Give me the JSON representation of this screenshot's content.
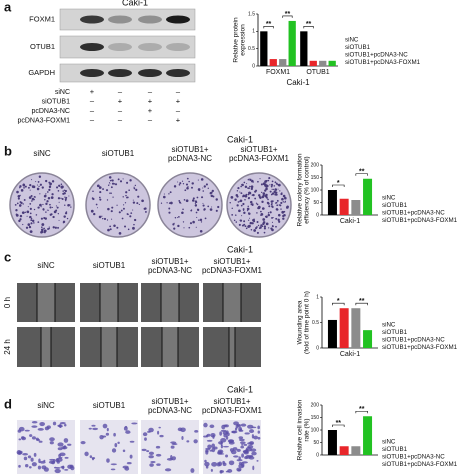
{
  "figure": {
    "panel_labels": [
      "a",
      "b",
      "c",
      "d"
    ],
    "blot": {
      "title": "Caki-1",
      "proteins": [
        "FOXM1",
        "OTUB1",
        "GAPDH"
      ],
      "treatments": [
        {
          "name": "siNC",
          "signs": [
            "+",
            "–",
            "–",
            "–"
          ]
        },
        {
          "name": "siOTUB1",
          "signs": [
            "–",
            "+",
            "+",
            "+"
          ]
        },
        {
          "name": "pcDNA3-NC",
          "signs": [
            "–",
            "–",
            "+",
            "–"
          ]
        },
        {
          "name": "pcDNA3-FOXM1",
          "signs": [
            "–",
            "–",
            "–",
            "+"
          ]
        }
      ]
    },
    "image_panels": [
      {
        "title": "Caki-1",
        "columns": [
          [
            "siNC"
          ],
          [
            "siOTUB1"
          ],
          [
            "siOTUB1+",
            "pcDNA3-NC"
          ],
          [
            "siOTUB1+",
            "pcDNA3-FOXM1"
          ]
        ]
      },
      {
        "title": "Caki-1",
        "columns": [
          [
            "siNC"
          ],
          [
            "siOTUB1"
          ],
          [
            "siOTUB1+",
            "pcDNA3-NC"
          ],
          [
            "siOTUB1+",
            "pcDNA3-FOXM1"
          ]
        ]
      },
      {
        "title": "Caki-1",
        "columns": [
          [
            "siNC"
          ],
          [
            "siOTUB1"
          ],
          [
            "siOTUB1+",
            "pcDNA3-NC"
          ],
          [
            "siOTUB1+",
            "pcDNA3-FOXM1"
          ]
        ]
      }
    ],
    "time_points": [
      "0 h",
      "24 h"
    ]
  },
  "chart_data": [
    {
      "type": "bar",
      "y_label": [
        "Relative protein",
        "expression"
      ],
      "x_label": "Caki-1",
      "categories": [
        "FOXM1",
        "OTUB1"
      ],
      "series": [
        {
          "name": "siNC",
          "color": "#000000",
          "values": [
            1.0,
            1.0
          ]
        },
        {
          "name": "siOTUB1",
          "color": "#e8262a",
          "values": [
            0.2,
            0.15
          ]
        },
        {
          "name": "siOTUB1+pcDNA3-NC",
          "color": "#8c8c8c",
          "values": [
            0.2,
            0.15
          ]
        },
        {
          "name": "siOTUB1+pcDNA3-FOXM1",
          "color": "#22c222",
          "values": [
            1.3,
            0.15
          ]
        }
      ],
      "ylim": [
        0,
        1.5
      ],
      "yticks": [
        0,
        0.5,
        1,
        1.5
      ],
      "annotations": [
        "**",
        "**",
        "**"
      ]
    },
    {
      "type": "bar",
      "y_label": [
        "Relative colony formation",
        "efficiency (% of control)"
      ],
      "categories": [
        "Caki-1"
      ],
      "series": [
        {
          "name": "siNC",
          "color": "#000000",
          "values": [
            100
          ]
        },
        {
          "name": "siOTUB1",
          "color": "#e8262a",
          "values": [
            65
          ]
        },
        {
          "name": "siOTUB1+pcDNA3-NC",
          "color": "#8c8c8c",
          "values": [
            60
          ]
        },
        {
          "name": "siOTUB1+pcDNA3-FOXM1",
          "color": "#22c222",
          "values": [
            145
          ]
        }
      ],
      "ylim": [
        0,
        200
      ],
      "yticks": [
        0,
        50,
        100,
        150,
        200
      ],
      "annotations": [
        "*",
        "**"
      ]
    },
    {
      "type": "bar",
      "y_label": [
        "Wounding area",
        "(fold of time point 0 h)"
      ],
      "categories": [
        "Caki-1"
      ],
      "series": [
        {
          "name": "siNC",
          "color": "#000000",
          "values": [
            0.55
          ]
        },
        {
          "name": "siOTUB1",
          "color": "#e8262a",
          "values": [
            0.78
          ]
        },
        {
          "name": "siOTUB1+pcDNA3-NC",
          "color": "#8c8c8c",
          "values": [
            0.78
          ]
        },
        {
          "name": "siOTUB1+pcDNA3-FOXM1",
          "color": "#22c222",
          "values": [
            0.35
          ]
        }
      ],
      "ylim": [
        0,
        1
      ],
      "yticks": [
        0,
        0.5,
        1
      ],
      "annotations": [
        "*",
        "**"
      ]
    },
    {
      "type": "bar",
      "y_label": [
        "Relative cell invasion",
        "rate (%)"
      ],
      "categories": [
        null
      ],
      "series": [
        {
          "name": "siNC",
          "color": "#000000",
          "values": [
            100
          ]
        },
        {
          "name": "siOTUB1",
          "color": "#e8262a",
          "values": [
            35
          ]
        },
        {
          "name": "siOTUB1+pcDNA3-NC",
          "color": "#8c8c8c",
          "values": [
            35
          ]
        },
        {
          "name": "siOTUB1+pcDNA3-FOXM1",
          "color": "#22c222",
          "values": [
            155
          ]
        }
      ],
      "ylim": [
        0,
        200
      ],
      "yticks": [
        0,
        50,
        100,
        150,
        200
      ],
      "annotations": [
        "**",
        "**"
      ]
    }
  ]
}
